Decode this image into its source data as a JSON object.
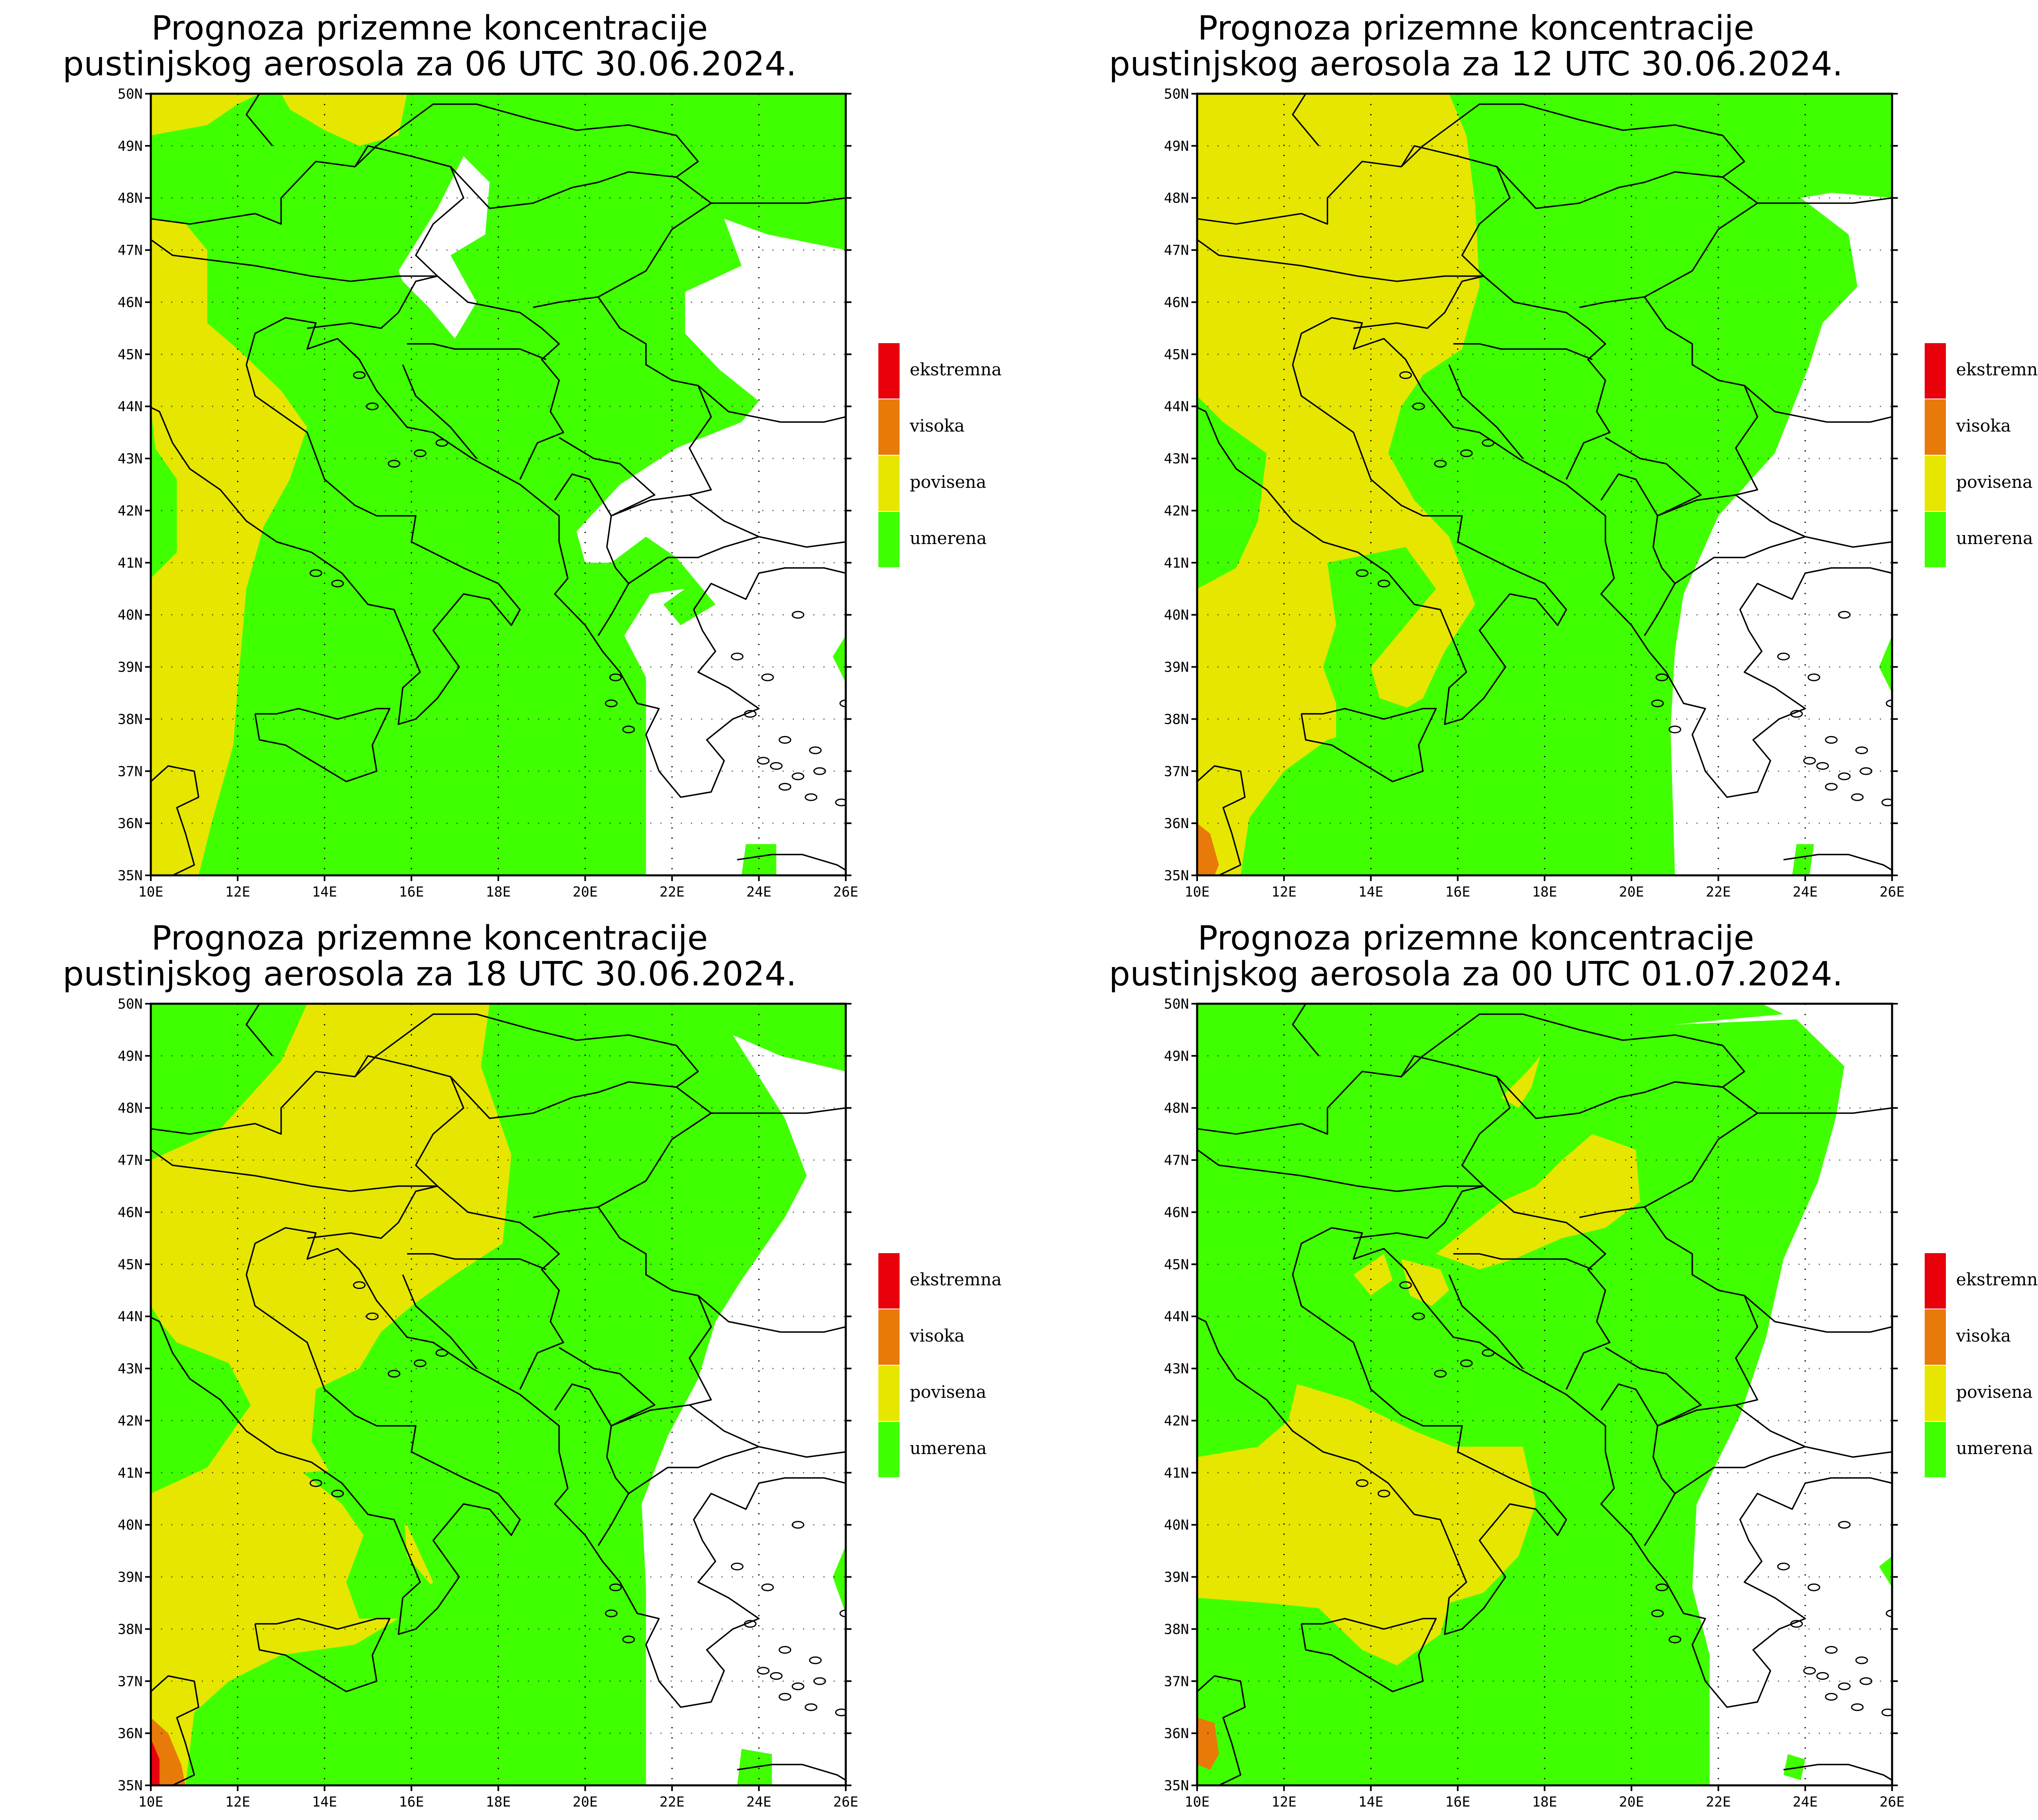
{
  "panels": [
    {
      "title_line1": "Prognoza prizemne koncentracije",
      "title_line2": "pustinjskog aerosola za 06 UTC 30.06.2024."
    },
    {
      "title_line1": "Prognoza prizemne koncentracije",
      "title_line2": "pustinjskog aerosola za 12 UTC 30.06.2024."
    },
    {
      "title_line1": "Prognoza prizemne koncentracije",
      "title_line2": "pustinjskog aerosola za 18 UTC 30.06.2024."
    },
    {
      "title_line1": "Prognoza prizemne koncentracije",
      "title_line2": "pustinjskog aerosola za 00 UTC 01.07.2024."
    }
  ],
  "axes": {
    "lat_labels": [
      "50N",
      "49N",
      "48N",
      "47N",
      "46N",
      "45N",
      "44N",
      "43N",
      "42N",
      "41N",
      "40N",
      "39N",
      "38N",
      "37N",
      "36N",
      "35N"
    ],
    "lon_labels": [
      "10E",
      "12E",
      "14E",
      "16E",
      "18E",
      "20E",
      "22E",
      "24E",
      "26E"
    ]
  },
  "legend": [
    {
      "label": "ekstremna",
      "color": "#e8000a"
    },
    {
      "label": "visoka",
      "color": "#e87a0a"
    },
    {
      "label": "povisena",
      "color": "#e6e600"
    },
    {
      "label": "umerena",
      "color": "#40ff00"
    }
  ],
  "colors": {
    "umerena": "#40ff00",
    "povisena": "#e6e600",
    "visoka": "#e87a0a",
    "ekstremna": "#e8000a",
    "none": "#ffffff"
  }
}
